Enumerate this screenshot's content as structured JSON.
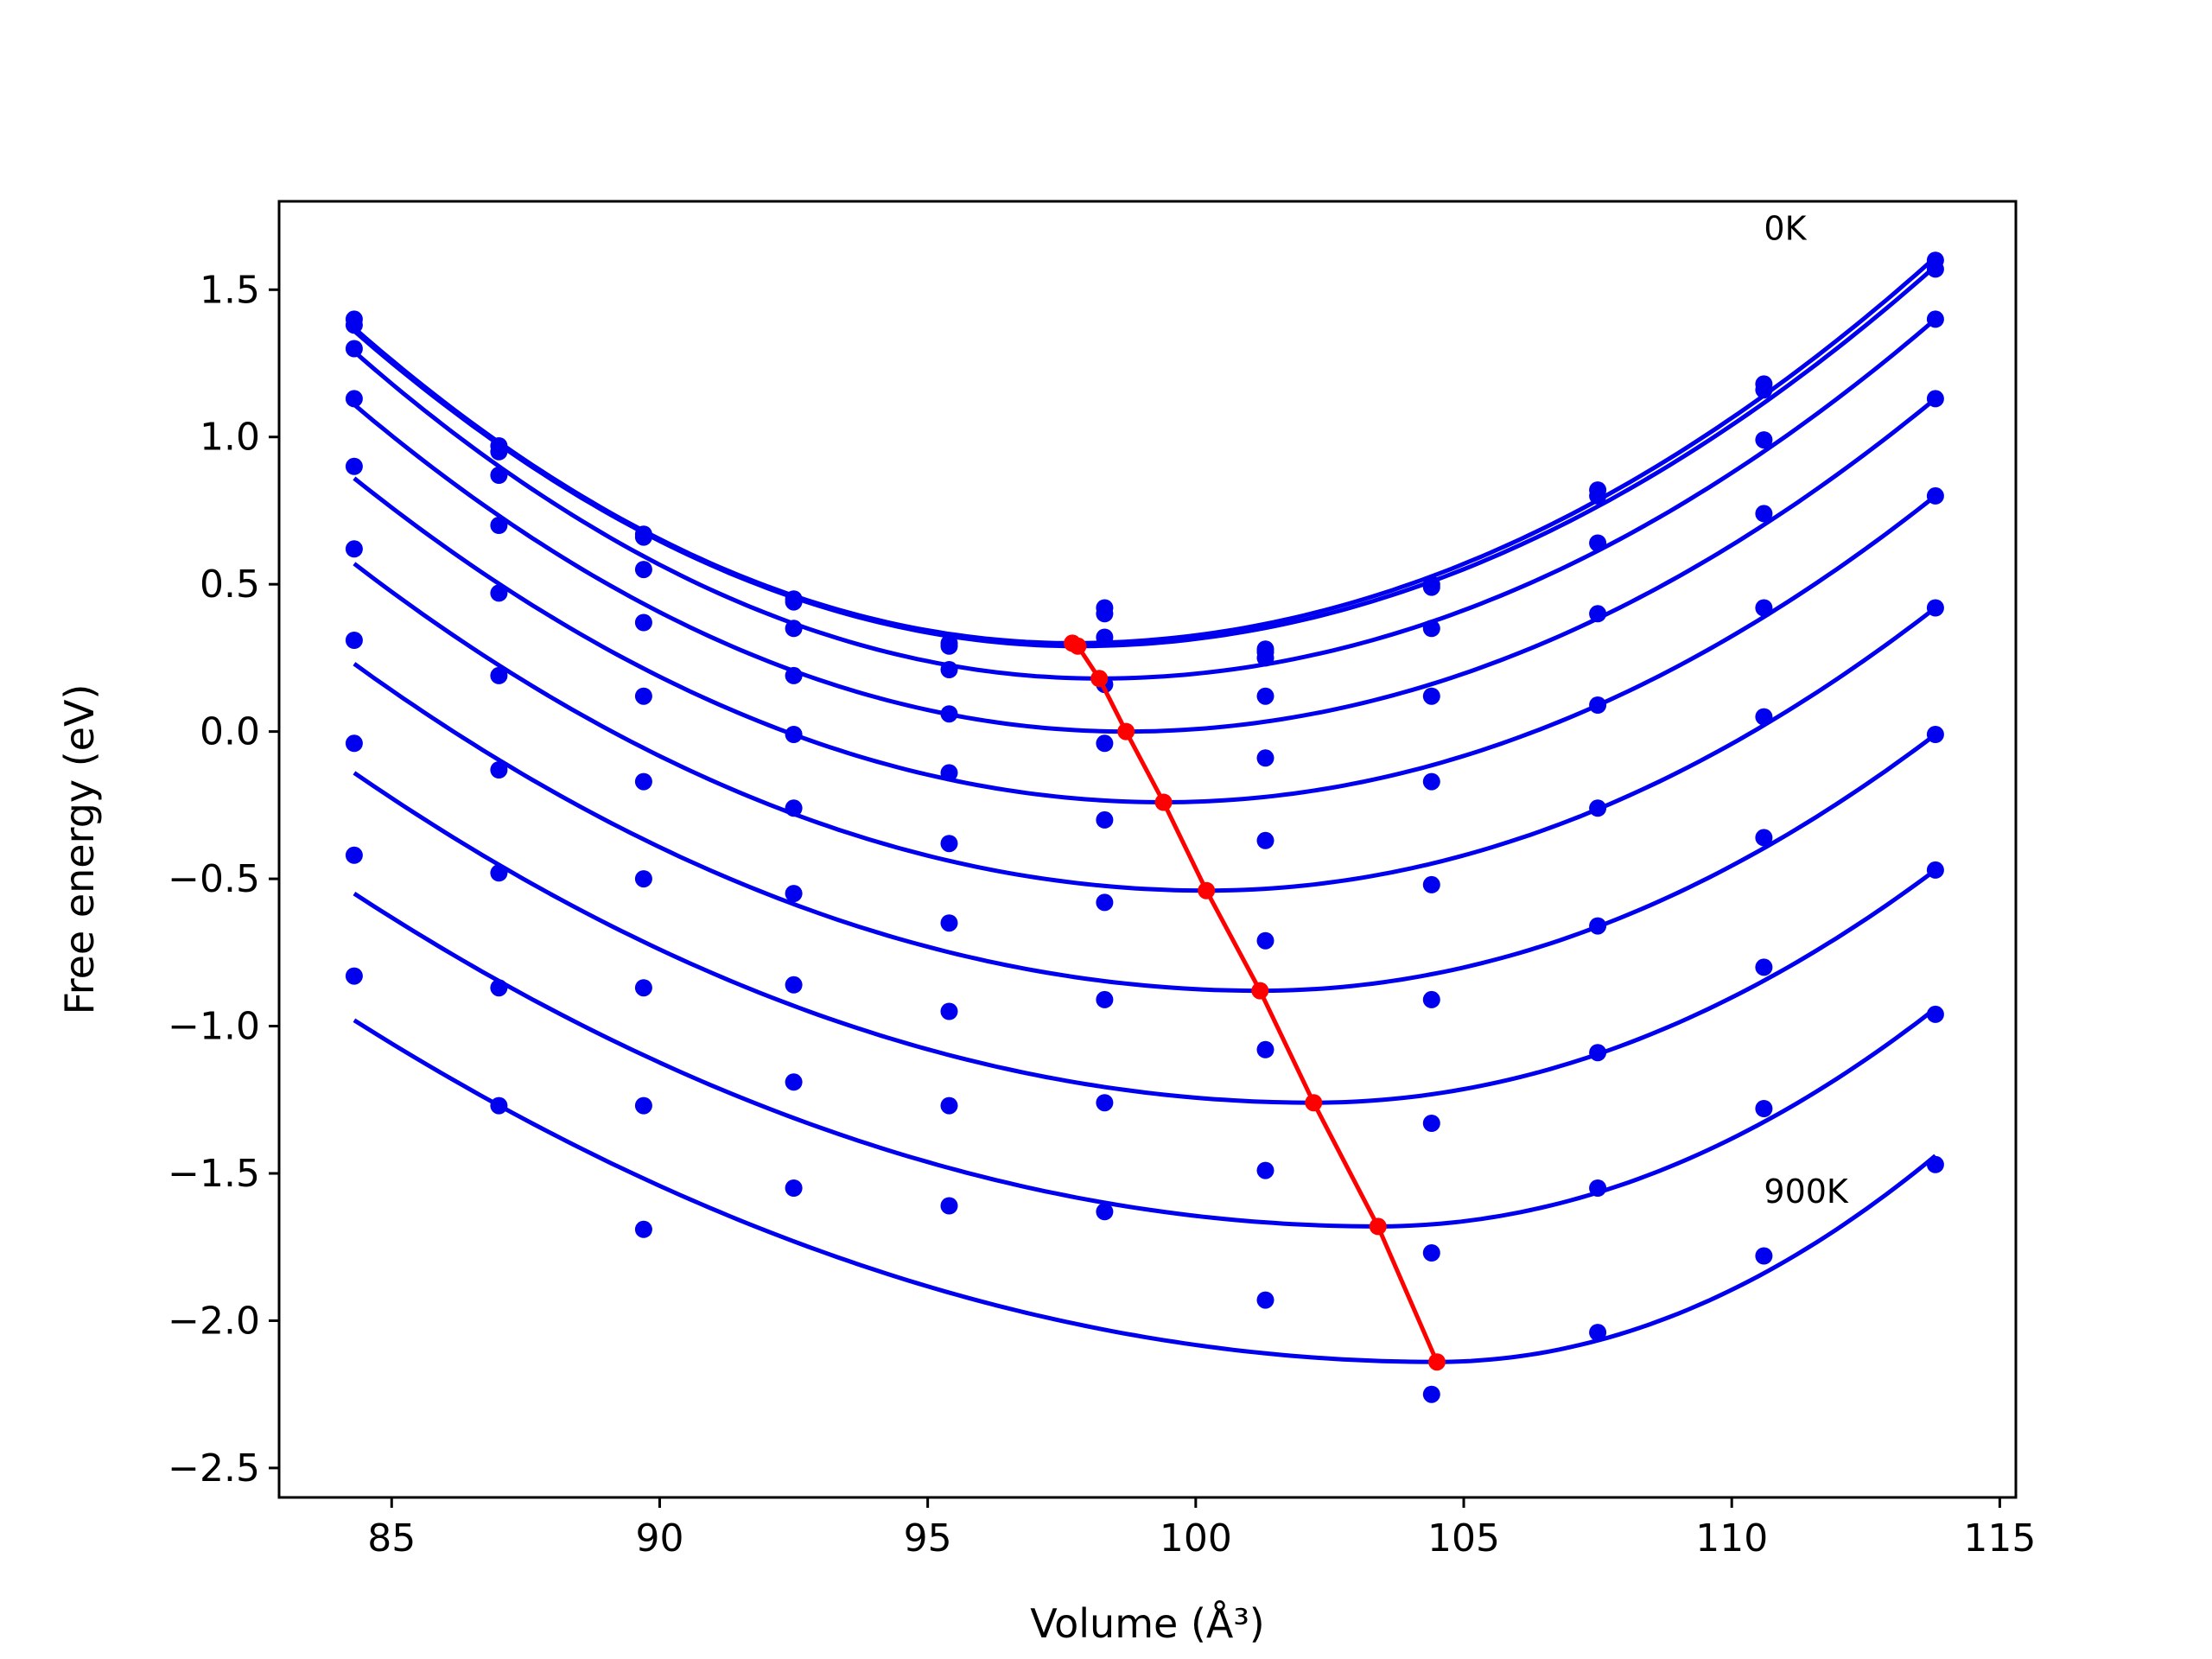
{
  "chart_data": {
    "type": "scatter",
    "xlabel": "Volume (Å³)",
    "ylabel": "Free energy (eV)",
    "xlim": [
      82.9,
      115.3
    ],
    "ylim": [
      -2.6,
      1.8
    ],
    "xticks": [
      85,
      90,
      95,
      100,
      105,
      110,
      115
    ],
    "yticks": [
      -2.5,
      -2.0,
      -1.5,
      -1.0,
      -0.5,
      0.0,
      0.5,
      1.0,
      1.5
    ],
    "grid": false,
    "annotations": [
      {
        "text": "0K",
        "x": 110.6,
        "y": 1.67
      },
      {
        "text": "900K",
        "x": 110.6,
        "y": -1.6
      }
    ],
    "colors": {
      "points": "#0000ee",
      "fits": "#0000ee",
      "minima": "#ff0000"
    },
    "volumes": [
      84.3,
      87.0,
      89.7,
      92.5,
      95.4,
      98.3,
      101.3,
      104.4,
      107.5,
      110.6,
      113.8
    ],
    "series": [
      {
        "values": [
          1.4,
          0.97,
          0.67,
          0.45,
          0.3,
          0.42,
          0.28,
          0.5,
          0.82,
          1.18,
          1.6
        ],
        "fit": {
          "vmin": 97.7,
          "fmin": 0.3,
          "left": 1.37,
          "right": 1.61
        }
      },
      {
        "values": [
          1.38,
          0.95,
          0.66,
          0.44,
          0.29,
          0.4,
          0.27,
          0.49,
          0.8,
          1.16,
          1.57
        ],
        "fit": {
          "vmin": 97.8,
          "fmin": 0.29,
          "left": 1.36,
          "right": 1.58
        }
      },
      {
        "values": [
          1.3,
          0.87,
          0.55,
          0.35,
          0.21,
          0.32,
          0.25,
          0.35,
          0.64,
          0.99,
          1.4
        ],
        "fit": {
          "vmin": 98.2,
          "fmin": 0.18,
          "left": 1.29,
          "right": 1.4
        }
      },
      {
        "values": [
          1.13,
          0.7,
          0.37,
          0.19,
          0.06,
          0.16,
          0.12,
          0.12,
          0.4,
          0.74,
          1.13
        ],
        "fit": {
          "vmin": 98.7,
          "fmin": 0.0,
          "left": 1.11,
          "right": 1.13
        }
      },
      {
        "values": [
          0.9,
          0.47,
          0.12,
          -0.01,
          -0.14,
          -0.04,
          -0.09,
          -0.17,
          0.09,
          0.42,
          0.8
        ],
        "fit": {
          "vmin": 99.4,
          "fmin": -0.24,
          "left": 0.86,
          "right": 0.8
        }
      },
      {
        "values": [
          0.62,
          0.19,
          -0.17,
          -0.26,
          -0.38,
          -0.3,
          -0.37,
          -0.52,
          -0.26,
          0.05,
          0.42
        ],
        "fit": {
          "vmin": 100.2,
          "fmin": -0.54,
          "left": 0.57,
          "right": 0.42
        }
      },
      {
        "values": [
          0.31,
          -0.13,
          -0.5,
          -0.55,
          -0.65,
          -0.58,
          -0.71,
          -0.91,
          -0.66,
          -0.36,
          -0.01
        ],
        "fit": {
          "vmin": 101.2,
          "fmin": -0.88,
          "left": 0.23,
          "right": -0.01
        }
      },
      {
        "values": [
          -0.04,
          -0.48,
          -0.87,
          -0.86,
          -0.95,
          -0.91,
          -1.08,
          -1.33,
          -1.09,
          -0.8,
          -0.47
        ],
        "fit": {
          "vmin": 102.2,
          "fmin": -1.26,
          "left": -0.14,
          "right": -0.47
        }
      },
      {
        "values": [
          -0.42,
          -0.87,
          -1.27,
          -1.19,
          -1.27,
          -1.26,
          -1.49,
          -1.77,
          -1.55,
          -1.28,
          -0.96
        ],
        "fit": {
          "vmin": 103.4,
          "fmin": -1.68,
          "left": -0.55,
          "right": -0.94
        }
      },
      {
        "values": [
          -0.83,
          -1.27,
          -1.69,
          -1.55,
          -1.61,
          -1.63,
          -1.93,
          -2.25,
          -2.04,
          -1.78,
          -1.47
        ],
        "fit": {
          "vmin": 104.5,
          "fmin": -2.14,
          "left": -0.98,
          "right": -1.44
        }
      }
    ],
    "minima_curve": {
      "x": [
        97.7,
        97.8,
        98.2,
        98.7,
        99.4,
        100.2,
        101.2,
        102.2,
        103.4,
        104.5
      ],
      "y": [
        0.3,
        0.29,
        0.18,
        0.0,
        -0.24,
        -0.54,
        -0.88,
        -1.26,
        -1.68,
        -2.14
      ]
    }
  }
}
